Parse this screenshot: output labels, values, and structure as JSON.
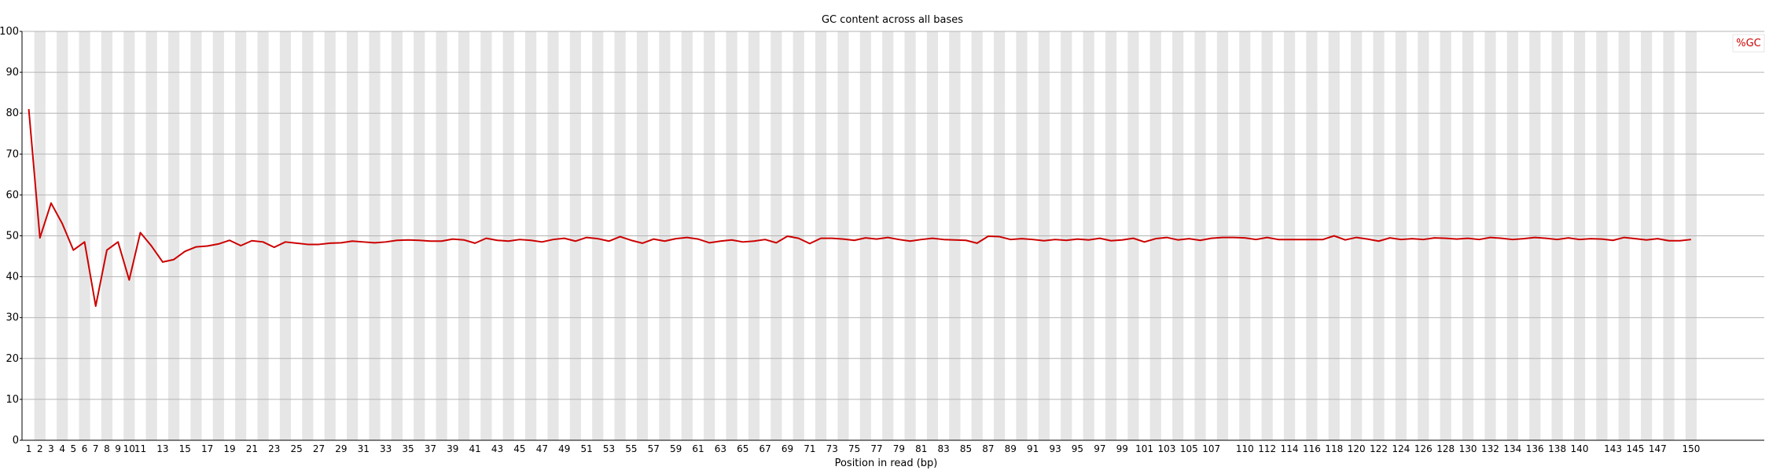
{
  "chart_data": {
    "type": "line",
    "title": "GC content across all bases",
    "xlabel": "Position in read (bp)",
    "ylabel": "",
    "ylim": [
      0,
      100
    ],
    "yticks": [
      0,
      10,
      20,
      30,
      40,
      50,
      60,
      70,
      80,
      90,
      100
    ],
    "grid": true,
    "legend_position": "top-right",
    "x": [
      1,
      2,
      3,
      4,
      5,
      6,
      7,
      8,
      9,
      10,
      11,
      12,
      13,
      14,
      15,
      16,
      17,
      18,
      19,
      20,
      21,
      22,
      23,
      24,
      25,
      26,
      27,
      28,
      29,
      30,
      31,
      32,
      33,
      34,
      35,
      36,
      37,
      38,
      39,
      40,
      41,
      42,
      43,
      44,
      45,
      46,
      47,
      48,
      49,
      50,
      51,
      52,
      53,
      54,
      55,
      56,
      57,
      58,
      59,
      60,
      61,
      62,
      63,
      64,
      65,
      66,
      67,
      68,
      69,
      70,
      71,
      72,
      73,
      74,
      75,
      76,
      77,
      78,
      79,
      80,
      81,
      82,
      83,
      84,
      85,
      86,
      87,
      88,
      89,
      90,
      91,
      92,
      93,
      94,
      95,
      96,
      97,
      98,
      99,
      100,
      101,
      102,
      103,
      104,
      105,
      106,
      107,
      108,
      109,
      110,
      111,
      112,
      113,
      114,
      115,
      116,
      117,
      118,
      119,
      120,
      121,
      122,
      123,
      124,
      125,
      126,
      127,
      128,
      129,
      130,
      131,
      132,
      133,
      134,
      135,
      136,
      137,
      138,
      139,
      140,
      141,
      142,
      143,
      144,
      145,
      146,
      147,
      148,
      149,
      150
    ],
    "xtick_labels": [
      "1",
      "2",
      "3",
      "4",
      "5",
      "6",
      "7",
      "8",
      "9",
      "10",
      "11",
      "13",
      "15",
      "17",
      "19",
      "21",
      "23",
      "25",
      "27",
      "29",
      "31",
      "33",
      "35",
      "37",
      "39",
      "41",
      "43",
      "45",
      "47",
      "49",
      "51",
      "53",
      "55",
      "57",
      "59",
      "61",
      "63",
      "65",
      "67",
      "69",
      "71",
      "73",
      "75",
      "77",
      "79",
      "81",
      "83",
      "85",
      "87",
      "89",
      "91",
      "93",
      "95",
      "97",
      "99",
      "101",
      "103",
      "105",
      "107",
      "110",
      "112",
      "114",
      "116",
      "118",
      "120",
      "122",
      "124",
      "126",
      "128",
      "130",
      "132",
      "134",
      "136",
      "138",
      "140",
      "143",
      "145",
      "147",
      "150"
    ],
    "series": [
      {
        "name": "%GC",
        "color": "#cc0000",
        "values": [
          81,
          49.5,
          58,
          53,
          46.5,
          48.5,
          32.8,
          46.5,
          48.5,
          39.2,
          50.8,
          47.5,
          43.6,
          44.2,
          46.2,
          47.3,
          47.5,
          48,
          48.9,
          47.6,
          48.8,
          48.5,
          47.2,
          48.5,
          48.2,
          47.9,
          47.9,
          48.2,
          48.3,
          48.7,
          48.5,
          48.3,
          48.5,
          48.9,
          49,
          48.9,
          48.7,
          48.7,
          49.2,
          49,
          48.2,
          49.4,
          48.9,
          48.7,
          49.1,
          48.9,
          48.5,
          49.1,
          49.4,
          48.7,
          49.6,
          49.3,
          48.7,
          49.8,
          48.9,
          48.2,
          49.2,
          48.7,
          49.3,
          49.6,
          49.2,
          48.3,
          48.7,
          49,
          48.5,
          48.7,
          49.1,
          48.3,
          49.9,
          49.4,
          48.1,
          49.4,
          49.4,
          49.2,
          48.9,
          49.5,
          49.2,
          49.6,
          49.1,
          48.7,
          49.1,
          49.4,
          49.1,
          49,
          48.9,
          48.2,
          49.9,
          49.8,
          49.1,
          49.3,
          49.1,
          48.8,
          49.1,
          48.9,
          49.2,
          49,
          49.4,
          48.8,
          49,
          49.4,
          48.5,
          49.3,
          49.6,
          49,
          49.3,
          48.9,
          49.4,
          49.6,
          49.6,
          49.5,
          49.1,
          49.6,
          49.1,
          49.1,
          49.1,
          49.1,
          49.1,
          50,
          49,
          49.6,
          49.2,
          48.7,
          49.5,
          49.1,
          49.3,
          49.1,
          49.5,
          49.4,
          49.2,
          49.4,
          49.1,
          49.6,
          49.4,
          49.1,
          49.3,
          49.6,
          49.4,
          49.1,
          49.5,
          49.1,
          49.3,
          49.2,
          48.9,
          49.6,
          49.3,
          49,
          49.3,
          48.8,
          48.8,
          49.1
        ]
      }
    ]
  }
}
